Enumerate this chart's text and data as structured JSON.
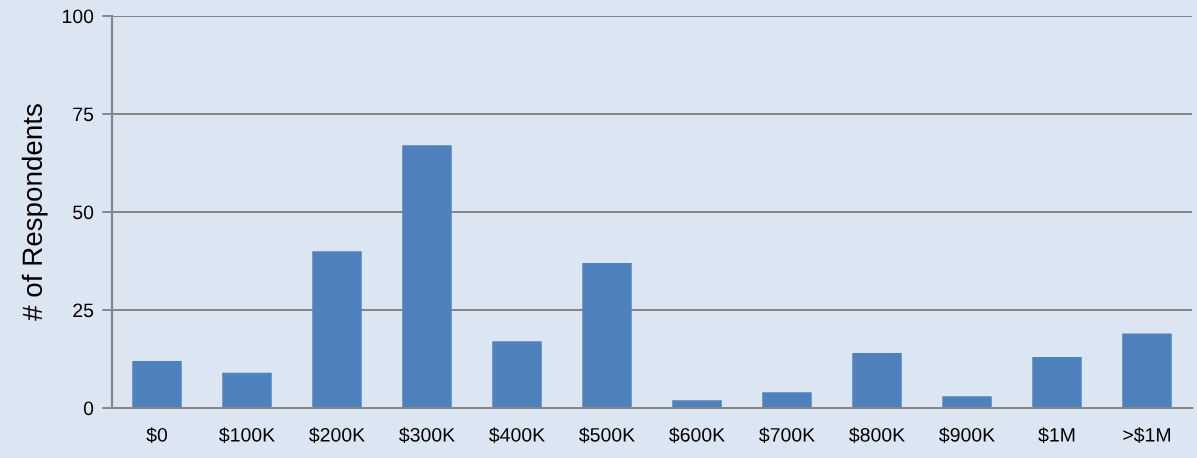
{
  "chart_data": {
    "type": "bar",
    "ylabel": "# of Respondents",
    "categories": [
      "$0",
      "$100K",
      "$200K",
      "$300K",
      "$400K",
      "$500K",
      "$600K",
      "$700K",
      "$800K",
      "$900K",
      "$1M",
      ">$1M"
    ],
    "values": [
      12,
      9,
      40,
      67,
      17,
      37,
      2,
      4,
      14,
      3,
      13,
      19
    ],
    "color": "#4f81bd",
    "ylim": [
      0,
      100
    ],
    "yticks": [
      0,
      25,
      50,
      75,
      100
    ],
    "grid": "y",
    "legend": false
  }
}
